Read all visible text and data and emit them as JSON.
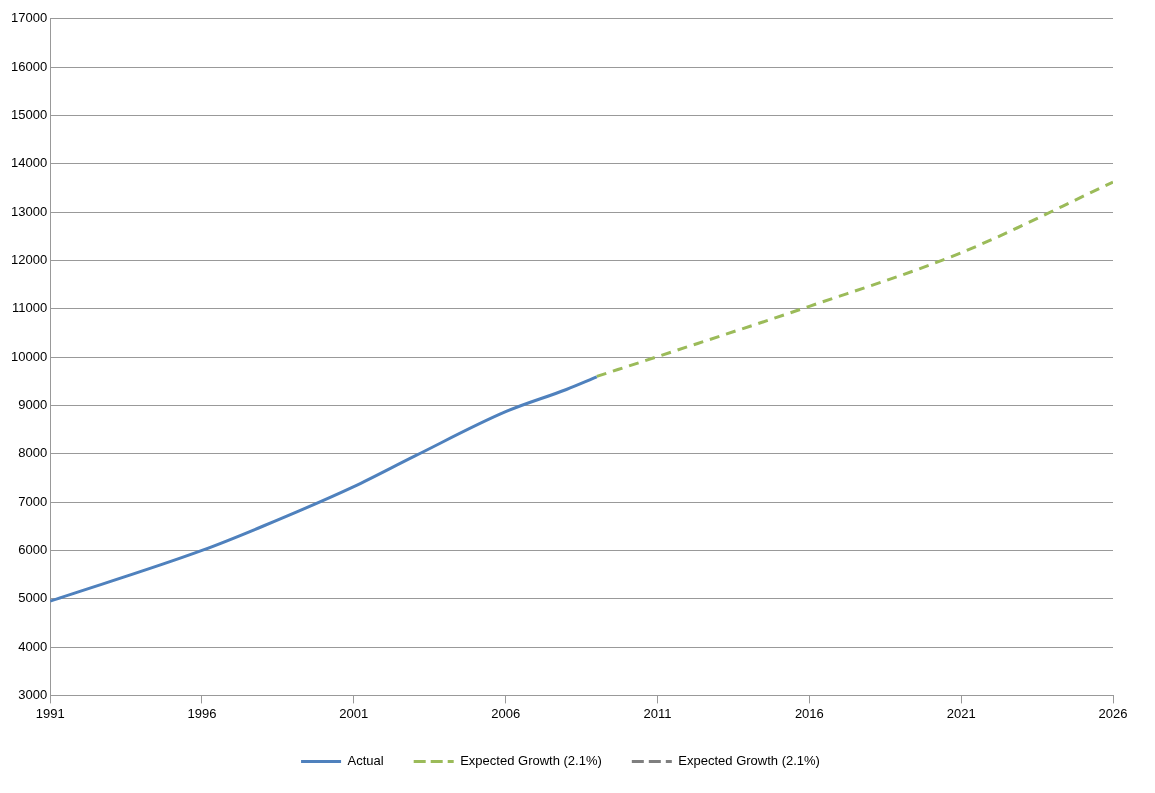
{
  "chart_data": {
    "type": "line",
    "xlim": [
      1991,
      2026
    ],
    "xticks": [
      1991,
      1996,
      2001,
      2006,
      2011,
      2016,
      2021,
      2026
    ],
    "ylim": [
      3000,
      17000
    ],
    "yticks": [
      3000,
      4000,
      5000,
      6000,
      7000,
      8000,
      9000,
      10000,
      11000,
      12000,
      13000,
      14000,
      15000,
      16000,
      17000
    ],
    "grid": "y",
    "legend": "bottom",
    "marker": "none",
    "series": [
      {
        "name": "Actual",
        "color": "#4f81bd",
        "line_style": "solid",
        "x": [
          1991,
          1996,
          1998,
          2001,
          2003,
          2006,
          2008,
          2009
        ],
        "values": [
          4950,
          6000,
          6500,
          7320,
          7950,
          8870,
          9330,
          9590
        ]
      },
      {
        "name": "Expected Growth (2.1%)",
        "color": "#9bbb59",
        "line_style": "dashed",
        "x": [
          2009,
          2011,
          2016,
          2021,
          2026
        ],
        "values": [
          9600,
          10010,
          11050,
          12160,
          13620
        ]
      },
      {
        "name": "Expected Growth (2.1%)",
        "color": "#7f7f7f",
        "line_style": "dashed"
      }
    ]
  }
}
